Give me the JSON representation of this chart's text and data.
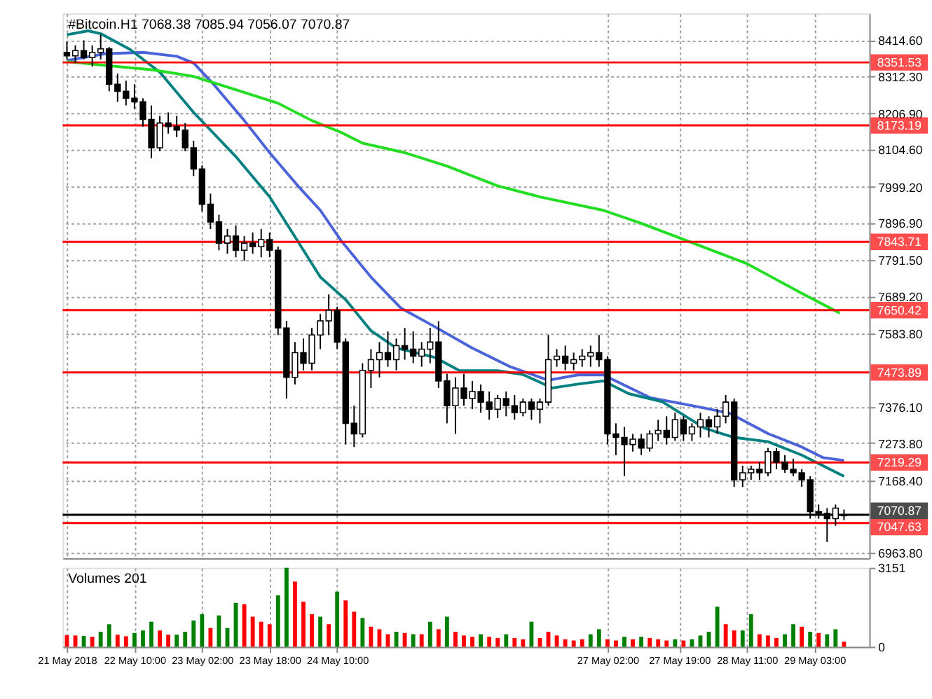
{
  "chart_data": [
    {
      "type": "candlestick",
      "title": "#Bitcoin.H1 7068.38 7085.94 7056.07 7070.87",
      "x": [
        "2018-05-21T18:00",
        "2018-05-21T20:00",
        "2018-05-21T22:00",
        "2018-05-22T00:00",
        "2018-05-22T02:00",
        "2018-05-22T04:00",
        "2018-05-22T06:00",
        "2018-05-22T08:00",
        "2018-05-22T10:00",
        "2018-05-22T12:00",
        "2018-05-22T14:00",
        "2018-05-22T16:00",
        "2018-05-22T18:00",
        "2018-05-22T20:00",
        "2018-05-22T22:00",
        "2018-05-23T00:00",
        "2018-05-23T02:00",
        "2018-05-23T04:00",
        "2018-05-23T06:00",
        "2018-05-23T08:00",
        "2018-05-23T10:00",
        "2018-05-23T12:00",
        "2018-05-23T14:00",
        "2018-05-23T16:00",
        "2018-05-23T18:00",
        "2018-05-23T20:00",
        "2018-05-23T22:00",
        "2018-05-24T00:00",
        "2018-05-24T02:00",
        "2018-05-24T04:00",
        "2018-05-24T06:00",
        "2018-05-24T08:00",
        "2018-05-24T10:00",
        "2018-05-24T12:00",
        "2018-05-24T14:00",
        "2018-05-24T16:00",
        "2018-05-24T18:00",
        "2018-05-24T20:00",
        "2018-05-24T22:00",
        "2018-05-25T00:00",
        "2018-05-25T02:00",
        "2018-05-25T04:00",
        "2018-05-25T06:00",
        "2018-05-25T08:00",
        "2018-05-25T10:00",
        "2018-05-25T12:00",
        "2018-05-25T14:00",
        "2018-05-25T16:00",
        "2018-05-25T18:00",
        "2018-05-25T20:00",
        "2018-05-25T22:00",
        "2018-05-26T00:00",
        "2018-05-26T02:00",
        "2018-05-26T04:00",
        "2018-05-26T06:00",
        "2018-05-26T08:00",
        "2018-05-26T10:00",
        "2018-05-26T12:00",
        "2018-05-26T14:00",
        "2018-05-26T16:00",
        "2018-05-26T18:00",
        "2018-05-26T20:00",
        "2018-05-26T22:00",
        "2018-05-27T00:00",
        "2018-05-27T02:00",
        "2018-05-27T04:00",
        "2018-05-27T06:00",
        "2018-05-27T08:00",
        "2018-05-27T10:00",
        "2018-05-27T12:00",
        "2018-05-27T14:00",
        "2018-05-27T16:00",
        "2018-05-27T18:00",
        "2018-05-27T20:00",
        "2018-05-27T22:00",
        "2018-05-28T00:00",
        "2018-05-28T02:00",
        "2018-05-28T04:00",
        "2018-05-28T06:00",
        "2018-05-28T08:00",
        "2018-05-28T10:00",
        "2018-05-28T12:00",
        "2018-05-28T14:00",
        "2018-05-28T16:00",
        "2018-05-28T18:00",
        "2018-05-28T20:00",
        "2018-05-28T22:00",
        "2018-05-29T00:00",
        "2018-05-29T02:00",
        "2018-05-29T04:00",
        "2018-05-29T06:00",
        "2018-05-29T08:00",
        "2018-05-29T10:00"
      ],
      "ohlc": [
        [
          8380,
          8410,
          8360,
          8370
        ],
        [
          8370,
          8400,
          8350,
          8385
        ],
        [
          8385,
          8414,
          8360,
          8365
        ],
        [
          8365,
          8400,
          8340,
          8380
        ],
        [
          8380,
          8430,
          8360,
          8390
        ],
        [
          8390,
          8395,
          8270,
          8290
        ],
        [
          8290,
          8320,
          8240,
          8270
        ],
        [
          8270,
          8300,
          8230,
          8250
        ],
        [
          8250,
          8290,
          8220,
          8240
        ],
        [
          8240,
          8250,
          8170,
          8190
        ],
        [
          8190,
          8230,
          8080,
          8110
        ],
        [
          8110,
          8200,
          8100,
          8180
        ],
        [
          8180,
          8210,
          8150,
          8170
        ],
        [
          8170,
          8200,
          8140,
          8160
        ],
        [
          8160,
          8180,
          8100,
          8110
        ],
        [
          8110,
          8130,
          8030,
          8050
        ],
        [
          8050,
          8060,
          7930,
          7950
        ],
        [
          7950,
          7980,
          7880,
          7900
        ],
        [
          7900,
          7920,
          7820,
          7840
        ],
        [
          7840,
          7880,
          7810,
          7860
        ],
        [
          7860,
          7890,
          7800,
          7820
        ],
        [
          7820,
          7860,
          7790,
          7840
        ],
        [
          7840,
          7870,
          7810,
          7830
        ],
        [
          7830,
          7880,
          7800,
          7850
        ],
        [
          7850,
          7870,
          7800,
          7820
        ],
        [
          7820,
          7830,
          7580,
          7600
        ],
        [
          7600,
          7620,
          7400,
          7460
        ],
        [
          7460,
          7560,
          7440,
          7530
        ],
        [
          7530,
          7570,
          7480,
          7500
        ],
        [
          7500,
          7600,
          7480,
          7580
        ],
        [
          7580,
          7640,
          7540,
          7620
        ],
        [
          7620,
          7695,
          7580,
          7650
        ],
        [
          7650,
          7660,
          7540,
          7560
        ],
        [
          7560,
          7570,
          7270,
          7330
        ],
        [
          7330,
          7380,
          7263,
          7300
        ],
        [
          7300,
          7500,
          7290,
          7480
        ],
        [
          7480,
          7540,
          7430,
          7510
        ],
        [
          7510,
          7560,
          7460,
          7530
        ],
        [
          7530,
          7590,
          7490,
          7510
        ],
        [
          7510,
          7570,
          7480,
          7550
        ],
        [
          7550,
          7600,
          7510,
          7540
        ],
        [
          7540,
          7590,
          7500,
          7520
        ],
        [
          7520,
          7560,
          7490,
          7540
        ],
        [
          7540,
          7600,
          7500,
          7560
        ],
        [
          7560,
          7619,
          7430,
          7450
        ],
        [
          7450,
          7470,
          7330,
          7380
        ],
        [
          7380,
          7460,
          7300,
          7430
        ],
        [
          7430,
          7470,
          7380,
          7400
        ],
        [
          7400,
          7450,
          7370,
          7420
        ],
        [
          7420,
          7440,
          7360,
          7390
        ],
        [
          7390,
          7420,
          7340,
          7370
        ],
        [
          7370,
          7410,
          7345,
          7400
        ],
        [
          7400,
          7420,
          7350,
          7380
        ],
        [
          7380,
          7410,
          7340,
          7360
        ],
        [
          7360,
          7400,
          7350,
          7390
        ],
        [
          7390,
          7400,
          7340,
          7370
        ],
        [
          7370,
          7400,
          7330,
          7390
        ],
        [
          7390,
          7580,
          7380,
          7510
        ],
        [
          7510,
          7540,
          7490,
          7520
        ],
        [
          7520,
          7550,
          7480,
          7500
        ],
        [
          7500,
          7530,
          7480,
          7510
        ],
        [
          7510,
          7540,
          7490,
          7520
        ],
        [
          7520,
          7550,
          7490,
          7530
        ],
        [
          7530,
          7580,
          7490,
          7510
        ],
        [
          7510,
          7520,
          7270,
          7300
        ],
        [
          7300,
          7330,
          7240,
          7290
        ],
        [
          7290,
          7320,
          7180,
          7270
        ],
        [
          7270,
          7300,
          7250,
          7285
        ],
        [
          7285,
          7300,
          7240,
          7260
        ],
        [
          7260,
          7310,
          7250,
          7300
        ],
        [
          7300,
          7340,
          7280,
          7310
        ],
        [
          7310,
          7350,
          7270,
          7290
        ],
        [
          7290,
          7360,
          7280,
          7340
        ],
        [
          7340,
          7350,
          7280,
          7300
        ],
        [
          7300,
          7330,
          7280,
          7320
        ],
        [
          7320,
          7360,
          7290,
          7340
        ],
        [
          7340,
          7350,
          7290,
          7320
        ],
        [
          7320,
          7370,
          7300,
          7350
        ],
        [
          7350,
          7410,
          7330,
          7390
        ],
        [
          7390,
          7400,
          7150,
          7170
        ],
        [
          7170,
          7210,
          7150,
          7190
        ],
        [
          7190,
          7210,
          7170,
          7200
        ],
        [
          7200,
          7220,
          7170,
          7190
        ],
        [
          7190,
          7260,
          7180,
          7250
        ],
        [
          7250,
          7260,
          7200,
          7220
        ],
        [
          7220,
          7240,
          7190,
          7200
        ],
        [
          7200,
          7230,
          7180,
          7190
        ],
        [
          7190,
          7200,
          7150,
          7170
        ],
        [
          7170,
          7180,
          7060,
          7080
        ],
        [
          7080,
          7100,
          7060,
          7075
        ],
        [
          7075,
          7090,
          6994,
          7060
        ],
        [
          7060,
          7100,
          7040,
          7090
        ],
        [
          7068.38,
          7085.94,
          7056.07,
          7070.87
        ]
      ],
      "series": [
        {
          "type": "line",
          "color": "#4a63d9",
          "x": [
            "2018-05-21T18:00",
            "2018-05-22T03:00",
            "2018-05-22T12:00",
            "2018-05-22T20:00",
            "2018-05-23T00:00",
            "2018-05-23T05:00",
            "2018-05-23T12:00",
            "2018-05-23T18:00",
            "2018-05-24T01:00",
            "2018-05-24T06:00",
            "2018-05-24T11:00",
            "2018-05-24T18:00",
            "2018-05-25T01:00",
            "2018-05-25T09:00",
            "2018-05-25T18:00",
            "2018-05-26T03:00",
            "2018-05-26T12:00",
            "2018-05-26T19:00",
            "2018-05-27T01:00",
            "2018-05-27T12:00",
            "2018-05-28T01:00",
            "2018-05-28T07:00",
            "2018-05-28T16:00",
            "2018-05-29T00:00",
            "2018-05-29T05:00",
            "2018-05-29T10:00"
          ],
          "values": [
            8357,
            8376,
            8380,
            8369,
            8350,
            8286,
            8187,
            8096,
            7998,
            7933,
            7846,
            7744,
            7657,
            7604,
            7543,
            7490,
            7452,
            7467,
            7467,
            7403,
            7373,
            7358,
            7301,
            7263,
            7233,
            7225
          ]
        },
        {
          "type": "line",
          "color": "#008080",
          "x": [
            "2018-05-21T18:00",
            "2018-05-21T23:00",
            "2018-05-22T02:00",
            "2018-05-22T09:00",
            "2018-05-22T16:00",
            "2018-05-23T00:00",
            "2018-05-23T10:00",
            "2018-05-23T18:00",
            "2018-05-24T00:00",
            "2018-05-24T06:00",
            "2018-05-24T12:00",
            "2018-05-24T18:00",
            "2018-05-25T00:00",
            "2018-05-25T09:00",
            "2018-05-25T15:00",
            "2018-05-26T00:00",
            "2018-05-26T06:00",
            "2018-05-26T13:00",
            "2018-05-26T19:00",
            "2018-05-27T01:00",
            "2018-05-27T07:00",
            "2018-05-27T15:00",
            "2018-05-28T01:00",
            "2018-05-28T08:00",
            "2018-05-28T16:00",
            "2018-05-29T00:00",
            "2018-05-29T10:00"
          ],
          "values": [
            8430,
            8441,
            8433,
            8388,
            8324,
            8210,
            8085,
            7971,
            7858,
            7744,
            7680,
            7592,
            7543,
            7517,
            7479,
            7479,
            7468,
            7430,
            7441,
            7450,
            7414,
            7391,
            7316,
            7290,
            7278,
            7240,
            7180
          ]
        },
        {
          "type": "line",
          "color": "#22dd22",
          "x": [
            "2018-05-21T18:00",
            "2018-05-22T03:00",
            "2018-05-22T14:00",
            "2018-05-23T00:00",
            "2018-05-23T10:00",
            "2018-05-23T20:00",
            "2018-05-24T04:00",
            "2018-05-24T11:00",
            "2018-05-24T16:00",
            "2018-05-25T02:00",
            "2018-05-25T12:00",
            "2018-05-26T00:00",
            "2018-05-26T10:00",
            "2018-05-27T01:00",
            "2018-05-27T10:00",
            "2018-05-27T21:00",
            "2018-05-28T11:00",
            "2018-05-29T00:00",
            "2018-05-29T09:00"
          ],
          "values": [
            8354,
            8343,
            8331,
            8312,
            8274,
            8236,
            8187,
            8153,
            8123,
            8096,
            8058,
            8002,
            7971,
            7933,
            7896,
            7846,
            7782,
            7698,
            7642
          ]
        }
      ],
      "ref_lines": [
        {
          "axis": "y",
          "value": 8351.53,
          "label": "8351.53",
          "color": "#ff0000"
        },
        {
          "axis": "y",
          "value": 8173.19,
          "label": "8173.19",
          "color": "#ff0000"
        },
        {
          "axis": "y",
          "value": 7843.71,
          "label": "7843.71",
          "color": "#ff0000"
        },
        {
          "axis": "y",
          "value": 7650.42,
          "label": "7650.42",
          "color": "#ff0000"
        },
        {
          "axis": "y",
          "value": 7473.89,
          "label": "7473.89",
          "color": "#ff0000"
        },
        {
          "axis": "y",
          "value": 7219.29,
          "label": "7219.29",
          "color": "#ff0000"
        },
        {
          "axis": "y",
          "value": 7047.63,
          "label": "7047.63",
          "color": "#ff0000"
        },
        {
          "axis": "y",
          "value": 7070.87,
          "label": "7070.87",
          "color": "#000000"
        }
      ],
      "xlim": [
        "2018-05-21T17:00",
        "2018-05-29T16:00"
      ],
      "xticks": [
        {
          "value": "2018-05-21T18:00",
          "label": null
        },
        {
          "value": "2018-05-22T10:00",
          "label": null
        },
        {
          "value": "2018-05-23T02:00",
          "label": null
        },
        {
          "value": "2018-05-23T18:00",
          "label": null
        },
        {
          "value": "2018-05-24T10:00",
          "label": null
        },
        {
          "value": "2018-05-27T02:00",
          "label": null
        },
        {
          "value": "2018-05-27T19:00",
          "label": null
        },
        {
          "value": "2018-05-28T11:00",
          "label": null
        },
        {
          "value": "2018-05-29T03:00",
          "label": null
        }
      ],
      "ylim": [
        6948,
        8490
      ],
      "yticks": [
        {
          "value": 8414.6,
          "label": "8414.60"
        },
        {
          "value": 8312.3,
          "label": "8312.30"
        },
        {
          "value": 8206.9,
          "label": "8206.90"
        },
        {
          "value": 8104.6,
          "label": "8104.60"
        },
        {
          "value": 7999.2,
          "label": "7999.20"
        },
        {
          "value": 7896.9,
          "label": "7896.90"
        },
        {
          "value": 7791.5,
          "label": "7791.50"
        },
        {
          "value": 7689.2,
          "label": "7689.20"
        },
        {
          "value": 7583.8,
          "label": "7583.80"
        },
        {
          "value": 7376.1,
          "label": "7376.10"
        },
        {
          "value": 7273.8,
          "label": "7273.80"
        },
        {
          "value": 7168.4,
          "label": "7168.40"
        },
        {
          "value": 6963.8,
          "label": "6963.80"
        }
      ],
      "grid": true,
      "tick_labels": "y"
    },
    {
      "type": "bar",
      "title": "Volumes 201",
      "x": [
        "2018-05-21T18:00",
        "2018-05-21T20:00",
        "2018-05-21T22:00",
        "2018-05-22T00:00",
        "2018-05-22T02:00",
        "2018-05-22T04:00",
        "2018-05-22T06:00",
        "2018-05-22T08:00",
        "2018-05-22T10:00",
        "2018-05-22T12:00",
        "2018-05-22T14:00",
        "2018-05-22T16:00",
        "2018-05-22T18:00",
        "2018-05-22T20:00",
        "2018-05-22T22:00",
        "2018-05-23T00:00",
        "2018-05-23T02:00",
        "2018-05-23T04:00",
        "2018-05-23T06:00",
        "2018-05-23T08:00",
        "2018-05-23T10:00",
        "2018-05-23T12:00",
        "2018-05-23T14:00",
        "2018-05-23T16:00",
        "2018-05-23T18:00",
        "2018-05-23T20:00",
        "2018-05-23T22:00",
        "2018-05-24T00:00",
        "2018-05-24T02:00",
        "2018-05-24T04:00",
        "2018-05-24T06:00",
        "2018-05-24T08:00",
        "2018-05-24T10:00",
        "2018-05-24T12:00",
        "2018-05-24T14:00",
        "2018-05-24T16:00",
        "2018-05-24T18:00",
        "2018-05-24T20:00",
        "2018-05-24T22:00",
        "2018-05-25T00:00",
        "2018-05-25T02:00",
        "2018-05-25T04:00",
        "2018-05-25T06:00",
        "2018-05-25T08:00",
        "2018-05-25T10:00",
        "2018-05-25T12:00",
        "2018-05-25T14:00",
        "2018-05-25T16:00",
        "2018-05-25T18:00",
        "2018-05-25T20:00",
        "2018-05-25T22:00",
        "2018-05-26T00:00",
        "2018-05-26T02:00",
        "2018-05-26T04:00",
        "2018-05-26T06:00",
        "2018-05-26T08:00",
        "2018-05-26T10:00",
        "2018-05-26T12:00",
        "2018-05-26T14:00",
        "2018-05-26T16:00",
        "2018-05-26T18:00",
        "2018-05-26T20:00",
        "2018-05-26T22:00",
        "2018-05-27T00:00",
        "2018-05-27T02:00",
        "2018-05-27T04:00",
        "2018-05-27T06:00",
        "2018-05-27T08:00",
        "2018-05-27T10:00",
        "2018-05-27T12:00",
        "2018-05-27T14:00",
        "2018-05-27T16:00",
        "2018-05-27T18:00",
        "2018-05-27T20:00",
        "2018-05-27T22:00",
        "2018-05-28T00:00",
        "2018-05-28T02:00",
        "2018-05-28T04:00",
        "2018-05-28T06:00",
        "2018-05-28T08:00",
        "2018-05-28T10:00",
        "2018-05-28T12:00",
        "2018-05-28T14:00",
        "2018-05-28T16:00",
        "2018-05-28T18:00",
        "2018-05-28T20:00",
        "2018-05-28T22:00",
        "2018-05-29T00:00",
        "2018-05-29T02:00",
        "2018-05-29T04:00",
        "2018-05-29T06:00",
        "2018-05-29T08:00",
        "2018-05-29T10:00"
      ],
      "values": [
        460,
        450,
        430,
        400,
        600,
        900,
        480,
        420,
        550,
        650,
        1000,
        650,
        480,
        480,
        600,
        1050,
        1300,
        750,
        1250,
        750,
        1750,
        1700,
        1200,
        1000,
        900,
        2050,
        3151,
        2600,
        1800,
        1300,
        1200,
        900,
        2200,
        1850,
        1400,
        1150,
        800,
        700,
        500,
        600,
        550,
        500,
        500,
        1000,
        700,
        1200,
        600,
        450,
        400,
        500,
        400,
        350,
        500,
        350,
        300,
        1000,
        350,
        600,
        450,
        300,
        250,
        300,
        500,
        700,
        300,
        250,
        400,
        300,
        400,
        350,
        300,
        250,
        300,
        250,
        300,
        450,
        600,
        1600,
        900,
        650,
        650,
        1300,
        500,
        450,
        350,
        500,
        900,
        800,
        600,
        550,
        500,
        700,
        201
      ],
      "colors": [
        "#ff0000",
        "#ff0000",
        "#008000",
        "#ff0000",
        "#008000",
        "#008000",
        "#ff0000",
        "#ff0000",
        "#008000",
        "#008000",
        "#008000",
        "#ff0000",
        "#ff0000",
        "#008000",
        "#008000",
        "#008000",
        "#008000",
        "#ff0000",
        "#008000",
        "#008000",
        "#008000",
        "#ff0000",
        "#ff0000",
        "#ff0000",
        "#ff0000",
        "#008000",
        "#008000",
        "#ff0000",
        "#ff0000",
        "#ff0000",
        "#008000",
        "#ff0000",
        "#008000",
        "#ff0000",
        "#ff0000",
        "#008000",
        "#ff0000",
        "#ff0000",
        "#ff0000",
        "#008000",
        "#ff0000",
        "#008000",
        "#ff0000",
        "#008000",
        "#ff0000",
        "#008000",
        "#ff0000",
        "#ff0000",
        "#ff0000",
        "#008000",
        "#ff0000",
        "#ff0000",
        "#008000",
        "#ff0000",
        "#ff0000",
        "#008000",
        "#ff0000",
        "#ff0000",
        "#ff0000",
        "#ff0000",
        "#ff0000",
        "#ff0000",
        "#008000",
        "#008000",
        "#ff0000",
        "#ff0000",
        "#008000",
        "#ff0000",
        "#008000",
        "#ff0000",
        "#ff0000",
        "#ff0000",
        "#008000",
        "#ff0000",
        "#008000",
        "#008000",
        "#008000",
        "#008000",
        "#ff0000",
        "#ff0000",
        "#008000",
        "#008000",
        "#ff0000",
        "#ff0000",
        "#ff0000",
        "#008000",
        "#008000",
        "#ff0000",
        "#008000",
        "#ff0000",
        "#008000",
        "#008000",
        "#ff0000"
      ],
      "xlim": [
        "2018-05-21T17:00",
        "2018-05-29T16:00"
      ],
      "xticks": [
        {
          "value": "2018-05-21T18:00",
          "label": "21 May 2018"
        },
        {
          "value": "2018-05-22T10:00",
          "label": "22 May 10:00"
        },
        {
          "value": "2018-05-23T02:00",
          "label": "23 May 02:00"
        },
        {
          "value": "2018-05-23T18:00",
          "label": "23 May 18:00"
        },
        {
          "value": "2018-05-24T10:00",
          "label": "24 May 10:00"
        },
        {
          "value": "2018-05-27T02:00",
          "label": "27 May 02:00"
        },
        {
          "value": "2018-05-27T19:00",
          "label": "27 May 19:00"
        },
        {
          "value": "2018-05-28T11:00",
          "label": "28 May 11:00"
        },
        {
          "value": "2018-05-29T03:00",
          "label": "29 May 03:00"
        }
      ],
      "ylim": [
        0,
        3151
      ],
      "yticks": [
        0,
        3151
      ],
      "grid": "x"
    }
  ]
}
